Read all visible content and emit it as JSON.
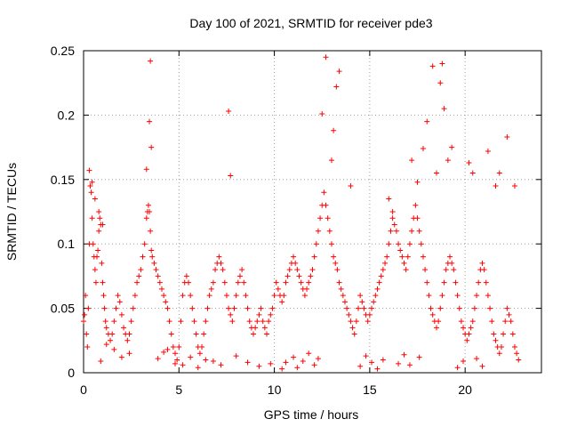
{
  "chart_data": {
    "type": "scatter",
    "title": "Day 100 of 2021, SRMTID for receiver pde3",
    "xlabel": "GPS time / hours",
    "ylabel": "SRMTID / TECUs",
    "xlim": [
      0,
      24
    ],
    "ylim": [
      0,
      0.25
    ],
    "xticks": [
      0,
      5,
      10,
      15,
      20
    ],
    "xtick_labels": [
      "0",
      "5",
      "10",
      "15",
      "20"
    ],
    "yticks": [
      0,
      0.05,
      0.1,
      0.15,
      0.2,
      0.25
    ],
    "ytick_labels": [
      "0",
      "0.05",
      "0.1",
      "0.15",
      "0.2",
      "0.25"
    ],
    "grid": true,
    "marker": "+",
    "series": [
      {
        "name": "SRMTID",
        "color": "#ff0000",
        "x": [
          0.0,
          0.05,
          0.1,
          0.15,
          0.2,
          0.25,
          0.3,
          0.35,
          0.4,
          0.45,
          0.5,
          0.55,
          0.6,
          0.65,
          0.7,
          0.75,
          0.8,
          0.85,
          0.9,
          0.95,
          1.0,
          1.05,
          1.1,
          1.15,
          1.2,
          1.3,
          1.4,
          1.5,
          1.6,
          1.7,
          1.8,
          1.9,
          2.0,
          2.1,
          2.2,
          2.3,
          2.4,
          2.5,
          2.6,
          2.7,
          2.8,
          2.9,
          3.0,
          3.1,
          3.2,
          3.3,
          3.35,
          3.4,
          3.45,
          3.5,
          3.55,
          3.6,
          3.7,
          3.8,
          3.9,
          4.0,
          4.1,
          4.2,
          4.3,
          4.4,
          4.5,
          4.6,
          4.7,
          4.8,
          4.9,
          5.0,
          5.1,
          5.2,
          5.3,
          5.4,
          5.5,
          5.6,
          5.7,
          5.8,
          5.9,
          6.0,
          6.1,
          6.2,
          6.3,
          6.4,
          6.5,
          6.6,
          6.7,
          6.8,
          6.9,
          7.0,
          7.1,
          7.2,
          7.3,
          7.4,
          7.5,
          7.6,
          7.7,
          7.8,
          7.9,
          8.0,
          8.1,
          8.2,
          8.3,
          8.4,
          8.5,
          8.6,
          8.7,
          8.8,
          8.9,
          9.0,
          9.1,
          9.2,
          9.3,
          9.4,
          9.5,
          9.6,
          9.7,
          9.8,
          9.9,
          10.0,
          10.1,
          10.2,
          10.3,
          10.4,
          10.5,
          10.6,
          10.7,
          10.8,
          10.9,
          11.0,
          11.1,
          11.2,
          11.3,
          11.4,
          11.5,
          11.6,
          11.7,
          11.8,
          11.9,
          12.0,
          12.1,
          12.2,
          12.3,
          12.4,
          12.5,
          12.6,
          12.7,
          12.8,
          12.9,
          13.0,
          13.1,
          13.2,
          13.3,
          13.4,
          13.5,
          13.6,
          13.7,
          13.8,
          13.9,
          14.0,
          14.1,
          14.2,
          14.3,
          14.4,
          14.5,
          14.6,
          14.7,
          14.8,
          14.9,
          15.0,
          15.1,
          15.2,
          15.3,
          15.4,
          15.5,
          15.6,
          15.7,
          15.8,
          15.9,
          16.0,
          16.1,
          16.2,
          16.3,
          16.4,
          16.5,
          16.6,
          16.7,
          16.8,
          16.9,
          17.0,
          17.1,
          17.2,
          17.3,
          17.4,
          17.5,
          17.6,
          17.7,
          17.8,
          17.9,
          18.0,
          18.1,
          18.2,
          18.3,
          18.4,
          18.5,
          18.6,
          18.7,
          18.8,
          18.9,
          19.0,
          19.1,
          19.2,
          19.3,
          19.4,
          19.5,
          19.6,
          19.7,
          19.8,
          19.9,
          20.0,
          20.1,
          20.2,
          20.3,
          20.4,
          20.5,
          20.6,
          20.7,
          20.8,
          20.9,
          21.0,
          21.1,
          21.2,
          21.3,
          21.4,
          21.5,
          21.6,
          21.7,
          21.8,
          21.9,
          22.0,
          22.1,
          22.2,
          22.3,
          22.4,
          22.5,
          22.6,
          22.7,
          22.8,
          0.3,
          0.45,
          0.6,
          0.8,
          1.0,
          3.3,
          3.45,
          3.5,
          3.55,
          7.6,
          7.7,
          12.5,
          12.7,
          13.0,
          13.1,
          13.25,
          13.4,
          14.0,
          16.0,
          16.2,
          17.2,
          17.5,
          17.8,
          18.0,
          18.3,
          18.5,
          18.7,
          18.8,
          18.9,
          19.1,
          19.3,
          20.2,
          20.4,
          21.2,
          21.6,
          21.8,
          22.2,
          22.6,
          10.4,
          10.6,
          11.0,
          11.2,
          11.5,
          11.8,
          12.1,
          12.3,
          14.5,
          14.8,
          15.1,
          15.4,
          15.7,
          16.5,
          16.8,
          17.1,
          17.6,
          19.6,
          19.9,
          20.6,
          20.9,
          4.4,
          4.8,
          5.6,
          6.0,
          6.8,
          7.2,
          8.0,
          8.6,
          9.2,
          2.0,
          2.4,
          1.6,
          1.2,
          0.9,
          3.9,
          4.2,
          5.2,
          6.4,
          9.8
        ],
        "y": [
          0.04,
          0.045,
          0.06,
          0.03,
          0.02,
          0.05,
          0.1,
          0.145,
          0.14,
          0.12,
          0.1,
          0.09,
          0.08,
          0.07,
          0.09,
          0.095,
          0.11,
          0.12,
          0.115,
          0.085,
          0.07,
          0.06,
          0.05,
          0.04,
          0.035,
          0.03,
          0.025,
          0.03,
          0.04,
          0.05,
          0.06,
          0.055,
          0.045,
          0.035,
          0.03,
          0.025,
          0.03,
          0.04,
          0.05,
          0.06,
          0.07,
          0.075,
          0.08,
          0.09,
          0.1,
          0.12,
          0.125,
          0.13,
          0.125,
          0.11,
          0.095,
          0.09,
          0.085,
          0.08,
          0.075,
          0.07,
          0.065,
          0.06,
          0.055,
          0.05,
          0.04,
          0.03,
          0.02,
          0.015,
          0.01,
          0.02,
          0.04,
          0.06,
          0.07,
          0.075,
          0.07,
          0.06,
          0.05,
          0.04,
          0.03,
          0.02,
          0.015,
          0.02,
          0.03,
          0.04,
          0.05,
          0.06,
          0.065,
          0.07,
          0.08,
          0.085,
          0.09,
          0.085,
          0.08,
          0.07,
          0.06,
          0.05,
          0.045,
          0.04,
          0.05,
          0.06,
          0.07,
          0.075,
          0.08,
          0.07,
          0.06,
          0.05,
          0.04,
          0.035,
          0.03,
          0.035,
          0.04,
          0.045,
          0.05,
          0.04,
          0.035,
          0.03,
          0.04,
          0.045,
          0.05,
          0.06,
          0.07,
          0.065,
          0.06,
          0.055,
          0.06,
          0.07,
          0.075,
          0.08,
          0.085,
          0.09,
          0.085,
          0.08,
          0.075,
          0.07,
          0.065,
          0.06,
          0.065,
          0.07,
          0.075,
          0.08,
          0.09,
          0.1,
          0.11,
          0.12,
          0.13,
          0.14,
          0.13,
          0.12,
          0.11,
          0.1,
          0.09,
          0.085,
          0.08,
          0.07,
          0.065,
          0.06,
          0.055,
          0.05,
          0.045,
          0.04,
          0.035,
          0.03,
          0.04,
          0.05,
          0.06,
          0.055,
          0.05,
          0.045,
          0.04,
          0.045,
          0.05,
          0.055,
          0.06,
          0.065,
          0.07,
          0.075,
          0.08,
          0.085,
          0.09,
          0.1,
          0.11,
          0.12,
          0.115,
          0.11,
          0.1,
          0.095,
          0.09,
          0.085,
          0.08,
          0.09,
          0.1,
          0.11,
          0.12,
          0.13,
          0.12,
          0.11,
          0.1,
          0.09,
          0.08,
          0.07,
          0.06,
          0.05,
          0.045,
          0.04,
          0.035,
          0.04,
          0.05,
          0.06,
          0.07,
          0.08,
          0.085,
          0.09,
          0.085,
          0.08,
          0.07,
          0.06,
          0.05,
          0.04,
          0.035,
          0.03,
          0.025,
          0.03,
          0.035,
          0.04,
          0.05,
          0.06,
          0.07,
          0.08,
          0.085,
          0.08,
          0.07,
          0.06,
          0.05,
          0.04,
          0.03,
          0.025,
          0.02,
          0.015,
          0.02,
          0.03,
          0.04,
          0.05,
          0.045,
          0.04,
          0.03,
          0.02,
          0.015,
          0.01,
          0.157,
          0.148,
          0.135,
          0.125,
          0.115,
          0.158,
          0.195,
          0.242,
          0.175,
          0.203,
          0.153,
          0.201,
          0.245,
          0.165,
          0.188,
          0.222,
          0.234,
          0.145,
          0.135,
          0.125,
          0.165,
          0.148,
          0.174,
          0.195,
          0.238,
          0.155,
          0.225,
          0.24,
          0.205,
          0.165,
          0.175,
          0.163,
          0.155,
          0.172,
          0.145,
          0.155,
          0.183,
          0.145,
          0.003,
          0.008,
          0.012,
          0.004,
          0.009,
          0.015,
          0.006,
          0.011,
          0.005,
          0.013,
          0.008,
          0.003,
          0.01,
          0.007,
          0.014,
          0.006,
          0.012,
          0.004,
          0.009,
          0.011,
          0.005,
          0.018,
          0.007,
          0.012,
          0.004,
          0.009,
          0.006,
          0.013,
          0.008,
          0.005,
          0.012,
          0.015,
          0.018,
          0.022,
          0.009,
          0.011,
          0.016,
          0.006,
          0.01,
          0.007
        ]
      }
    ]
  }
}
